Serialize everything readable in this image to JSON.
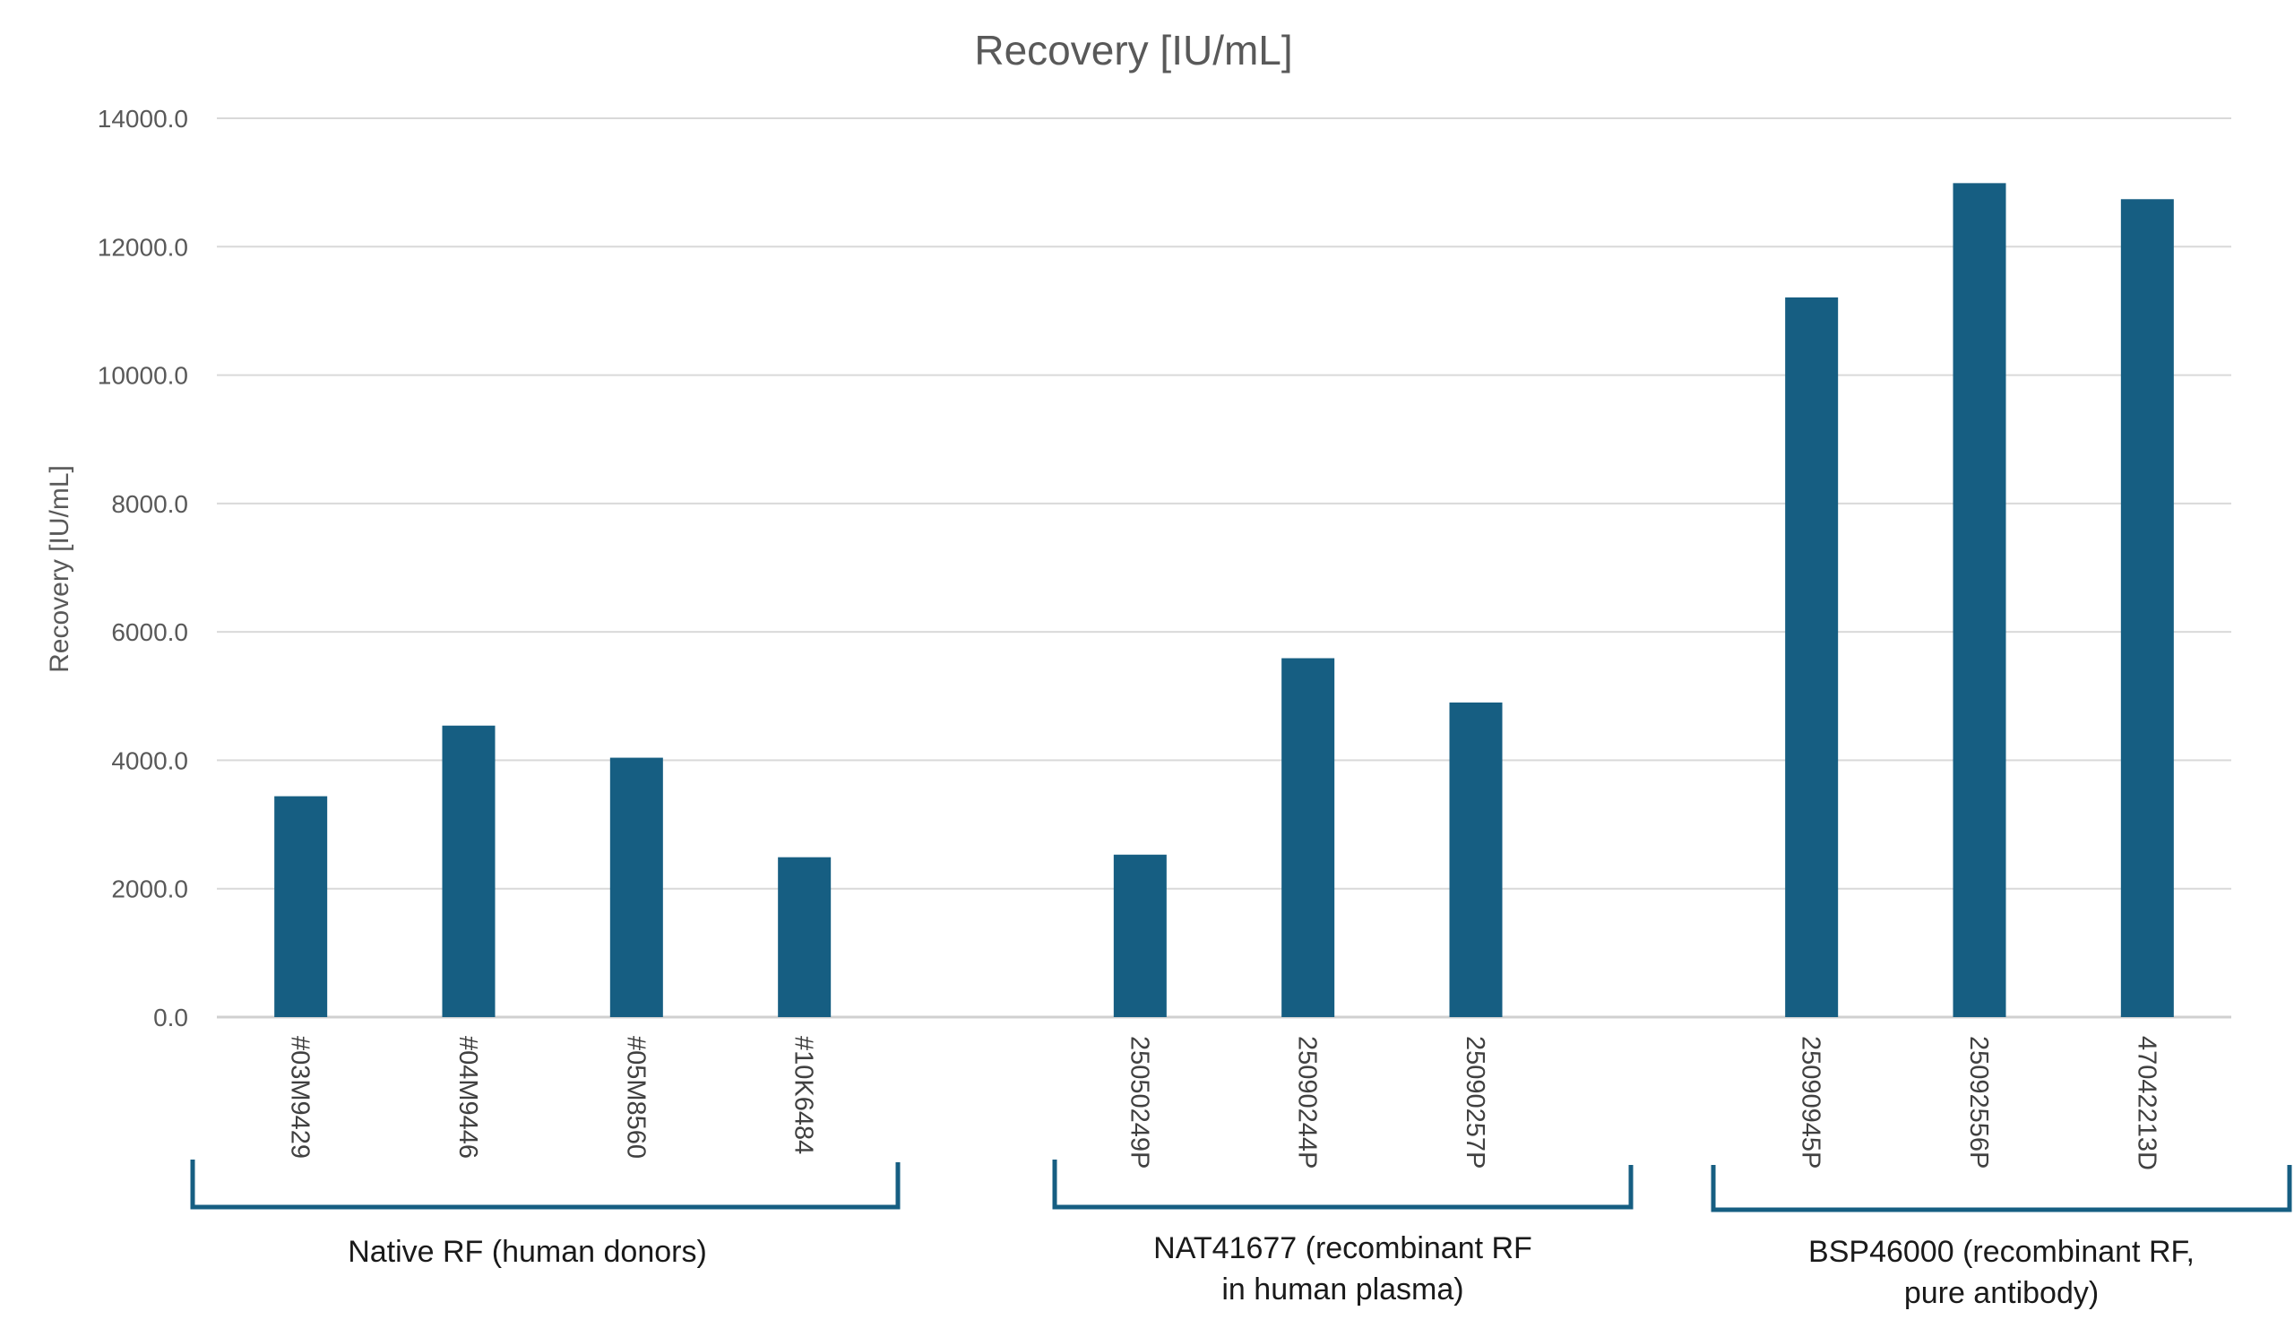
{
  "chart_data": {
    "type": "bar",
    "title": "Recovery [IU/mL]",
    "xlabel": "",
    "ylabel": "Recovery [IU/mL]",
    "ylim": [
      0,
      14000
    ],
    "yticks": [
      "0.0",
      "2000.0",
      "4000.0",
      "6000.0",
      "8000.0",
      "10000.0",
      "12000.0",
      "14000.0"
    ],
    "grid": true,
    "bar_color": "#165E82",
    "groups": [
      {
        "label_lines": [
          "Native RF (human donors)"
        ],
        "categories": [
          "#03M9429",
          "#04M9446",
          "#05M8560",
          "#10K6484"
        ],
        "values": [
          3440,
          4540,
          4040,
          2490
        ]
      },
      {
        "label_lines": [
          "NAT41677 (recombinant RF",
          "in human plasma)"
        ],
        "categories": [
          "25050249P",
          "25090244P",
          "25090257P"
        ],
        "values": [
          2530,
          5590,
          4900
        ]
      },
      {
        "label_lines": [
          "BSP46000 (recombinant RF,",
          "pure antibody)"
        ],
        "categories": [
          "25090945P",
          "25092556P",
          "47042213D"
        ],
        "values": [
          11210,
          12990,
          12740
        ]
      }
    ]
  }
}
